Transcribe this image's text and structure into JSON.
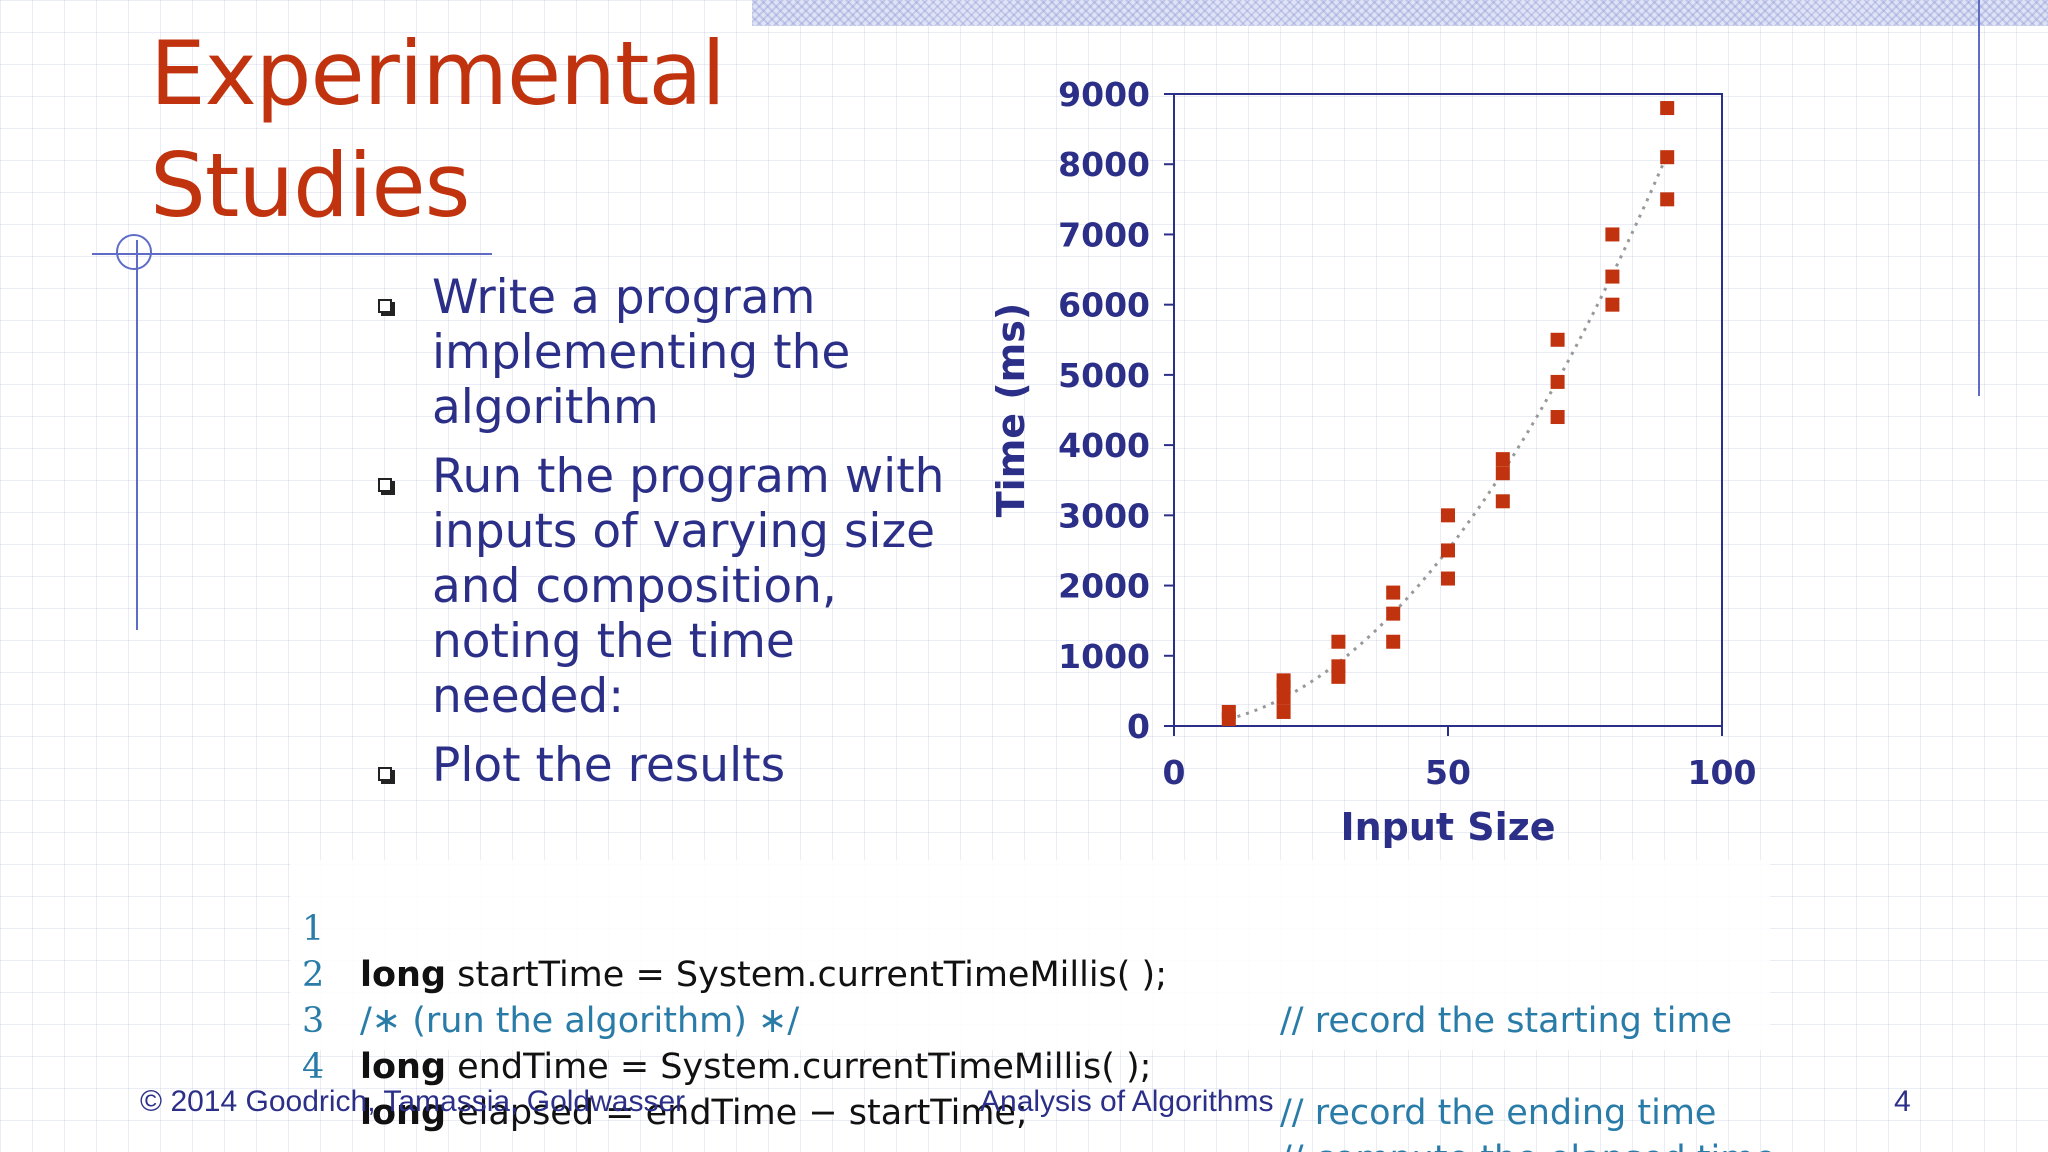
{
  "title": {
    "line1": "Experimental",
    "line2": "Studies"
  },
  "bullets": [
    {
      "text": "Write a program implementing the algorithm"
    },
    {
      "text": "Run the program with inputs of varying size and composition, noting the time needed:"
    },
    {
      "text": "Plot the results"
    }
  ],
  "chart_data": {
    "type": "scatter",
    "xlabel": "Input Size",
    "ylabel": "Time (ms)",
    "xlim": [
      0,
      100
    ],
    "ylim": [
      0,
      9000
    ],
    "xticks": [
      0,
      50,
      100
    ],
    "yticks": [
      0,
      1000,
      2000,
      3000,
      4000,
      5000,
      6000,
      7000,
      8000,
      9000
    ],
    "grid": false,
    "trendline": "dotted curve through points",
    "colors": {
      "points": "#c0330e",
      "axes": "#2b2f88",
      "trend": "#999999"
    },
    "points": [
      {
        "x": 10,
        "y": 100
      },
      {
        "x": 10,
        "y": 200
      },
      {
        "x": 20,
        "y": 200
      },
      {
        "x": 20,
        "y": 400
      },
      {
        "x": 20,
        "y": 550
      },
      {
        "x": 20,
        "y": 650
      },
      {
        "x": 30,
        "y": 700
      },
      {
        "x": 30,
        "y": 850
      },
      {
        "x": 30,
        "y": 1200
      },
      {
        "x": 40,
        "y": 1200
      },
      {
        "x": 40,
        "y": 1600
      },
      {
        "x": 40,
        "y": 1900
      },
      {
        "x": 50,
        "y": 2100
      },
      {
        "x": 50,
        "y": 2500
      },
      {
        "x": 50,
        "y": 3000
      },
      {
        "x": 60,
        "y": 3200
      },
      {
        "x": 60,
        "y": 3600
      },
      {
        "x": 60,
        "y": 3800
      },
      {
        "x": 70,
        "y": 4400
      },
      {
        "x": 70,
        "y": 4900
      },
      {
        "x": 70,
        "y": 5500
      },
      {
        "x": 80,
        "y": 6000
      },
      {
        "x": 80,
        "y": 6400
      },
      {
        "x": 80,
        "y": 7000
      },
      {
        "x": 90,
        "y": 7500
      },
      {
        "x": 90,
        "y": 8100
      },
      {
        "x": 90,
        "y": 8800
      }
    ]
  },
  "code": {
    "lines": [
      {
        "num": "1",
        "keyword": "long",
        "rest": " startTime = System.currentTimeMillis( );",
        "comment": "// record the starting time"
      },
      {
        "num": "2",
        "keyword": "",
        "rest": "/∗ (run the algorithm) ∗/",
        "comment": ""
      },
      {
        "num": "3",
        "keyword": "long",
        "rest": " endTime = System.currentTimeMillis( );",
        "comment": "// record the ending time"
      },
      {
        "num": "4",
        "keyword": "long",
        "rest": " elapsed = endTime − startTime;",
        "comment": "// compute the elapsed time"
      }
    ]
  },
  "footer": {
    "left": "© 2014 Goodrich, Tamassia, Goldwasser",
    "center": "Analysis of Algorithms",
    "right": "4"
  }
}
